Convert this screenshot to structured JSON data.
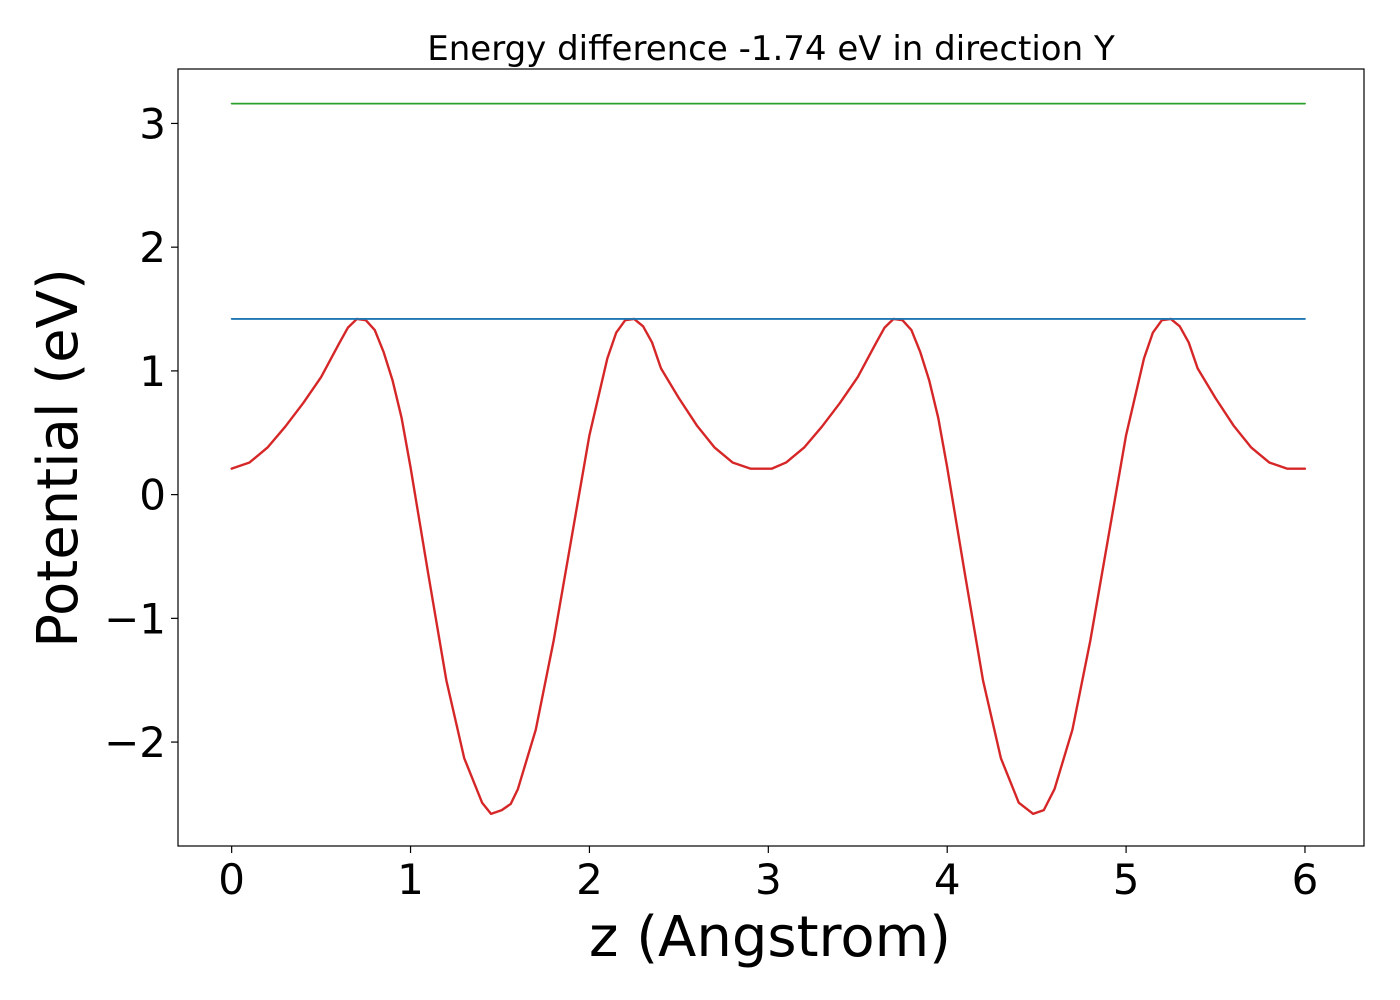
{
  "chart_data": {
    "type": "line",
    "title": "Energy difference -1.74 eV in direction Y",
    "xlabel": "z (Angstrom)",
    "ylabel": "Potential (eV)",
    "xlim": [
      -0.3,
      6.33
    ],
    "ylim": [
      -2.84,
      3.44
    ],
    "x_ticks": [
      0,
      1,
      2,
      3,
      4,
      5,
      6
    ],
    "x_tick_labels": [
      "0",
      "1",
      "2",
      "3",
      "4",
      "5",
      "6"
    ],
    "y_ticks": [
      -2,
      -1,
      0,
      1,
      2,
      3
    ],
    "y_tick_labels": [
      "−2",
      "−1",
      "0",
      "1",
      "2",
      "3"
    ],
    "grid": false,
    "series": [
      {
        "color": "#d62728",
        "x": [
          0,
          0.1,
          0.2,
          0.3,
          0.4,
          0.5,
          0.6,
          0.65,
          0.7,
          0.75,
          0.8,
          0.85,
          0.9,
          0.95,
          1.0,
          1.1,
          1.2,
          1.3,
          1.4,
          1.45,
          1.51,
          1.56,
          1.6,
          1.7,
          1.8,
          1.9,
          2.0,
          2.1,
          2.15,
          2.2,
          2.25,
          2.3,
          2.35,
          2.4,
          2.5,
          2.6,
          2.7,
          2.8,
          2.9,
          3.02,
          3.1,
          3.2,
          3.3,
          3.4,
          3.5,
          3.6,
          3.65,
          3.7,
          3.75,
          3.8,
          3.85,
          3.9,
          3.95,
          4.0,
          4.1,
          4.2,
          4.3,
          4.4,
          4.48,
          4.54,
          4.6,
          4.7,
          4.8,
          4.9,
          5.0,
          5.1,
          5.15,
          5.2,
          5.25,
          5.3,
          5.35,
          5.4,
          5.5,
          5.6,
          5.7,
          5.8,
          5.9,
          6.0
        ],
        "y": [
          0.21,
          0.26,
          0.38,
          0.55,
          0.74,
          0.95,
          1.22,
          1.35,
          1.42,
          1.41,
          1.33,
          1.15,
          0.92,
          0.62,
          0.22,
          -0.65,
          -1.5,
          -2.13,
          -2.49,
          -2.58,
          -2.55,
          -2.5,
          -2.38,
          -1.9,
          -1.18,
          -0.35,
          0.48,
          1.1,
          1.31,
          1.41,
          1.42,
          1.36,
          1.23,
          1.02,
          0.78,
          0.56,
          0.38,
          0.26,
          0.21,
          0.21,
          0.26,
          0.38,
          0.55,
          0.74,
          0.95,
          1.22,
          1.35,
          1.42,
          1.41,
          1.33,
          1.15,
          0.92,
          0.62,
          0.22,
          -0.65,
          -1.5,
          -2.13,
          -2.49,
          -2.58,
          -2.55,
          -2.38,
          -1.9,
          -1.18,
          -0.35,
          0.48,
          1.1,
          1.31,
          1.41,
          1.42,
          1.36,
          1.23,
          1.02,
          0.78,
          0.56,
          0.38,
          0.26,
          0.21,
          0.21
        ]
      },
      {
        "color": "#1f77b4",
        "x": [
          0,
          6.0
        ],
        "y": [
          1.42,
          1.42
        ]
      },
      {
        "color": "#2ca02c",
        "x": [
          0,
          6.0
        ],
        "y": [
          3.16,
          3.16
        ]
      }
    ]
  }
}
